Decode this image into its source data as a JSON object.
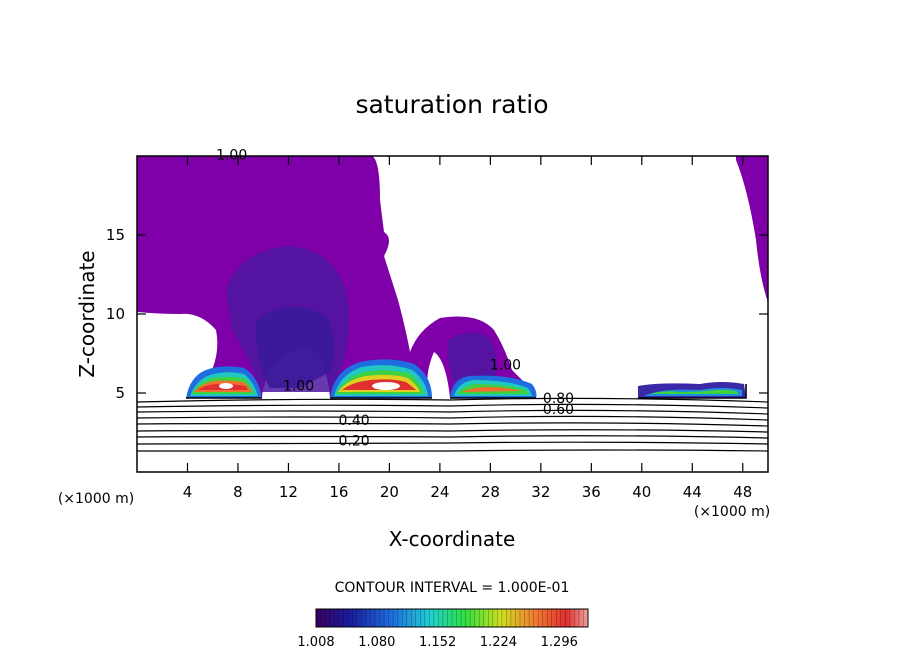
{
  "chart_data": {
    "type": "contour",
    "title": "saturation ratio",
    "xlabel": "X-coordinate",
    "ylabel": "Z-coordinate",
    "x_unit": "(×1000 m)",
    "y_unit": "(×1000 m)",
    "xlim": [
      0,
      50
    ],
    "ylim": [
      0,
      20
    ],
    "x_ticks": [
      4,
      8,
      12,
      16,
      20,
      24,
      28,
      32,
      36,
      40,
      44,
      48
    ],
    "y_ticks": [
      5,
      10,
      15
    ],
    "contour_interval_text": "CONTOUR INTERVAL = 1.000E-01",
    "contour_labels": [
      {
        "text": "1.00",
        "x": 7.5,
        "y": 19.9
      },
      {
        "text": "1.00",
        "x": 12.8,
        "y": 5.3
      },
      {
        "text": "1.00",
        "x": 29.2,
        "y": 6.6
      },
      {
        "text": "0.80",
        "x": 33.4,
        "y": 4.5
      },
      {
        "text": "0.60",
        "x": 33.4,
        "y": 3.8
      },
      {
        "text": "0.40",
        "x": 17.2,
        "y": 3.1
      },
      {
        "text": "0.20",
        "x": 17.2,
        "y": 1.8
      }
    ],
    "line_contour_levels": [
      0.1,
      0.2,
      0.3,
      0.4,
      0.5,
      0.6,
      0.7,
      0.8,
      0.9,
      1.0
    ],
    "filled_levels": [
      1.008,
      1.08,
      1.152,
      1.224,
      1.296
    ],
    "colorbar_labels": [
      "1.008",
      "1.080",
      "1.152",
      "1.224",
      "1.296"
    ],
    "supersaturated_cores": [
      {
        "x": [
          4,
          10
        ],
        "z_base": 4.7,
        "peak": 1.3
      },
      {
        "x": [
          15.5,
          22.5
        ],
        "z_base": 4.7,
        "peak": 1.3
      },
      {
        "x": [
          25,
          31
        ],
        "z_base": 4.7,
        "peak": 1.25
      },
      {
        "x": [
          40,
          48
        ],
        "z_base": 4.8,
        "peak": 1.12
      }
    ],
    "colors": {
      "background": "#ffffff",
      "low_saturation": "#7f00a8",
      "mid": "#2a22aa",
      "high": "#e04040",
      "peak": "#ffffff"
    }
  }
}
